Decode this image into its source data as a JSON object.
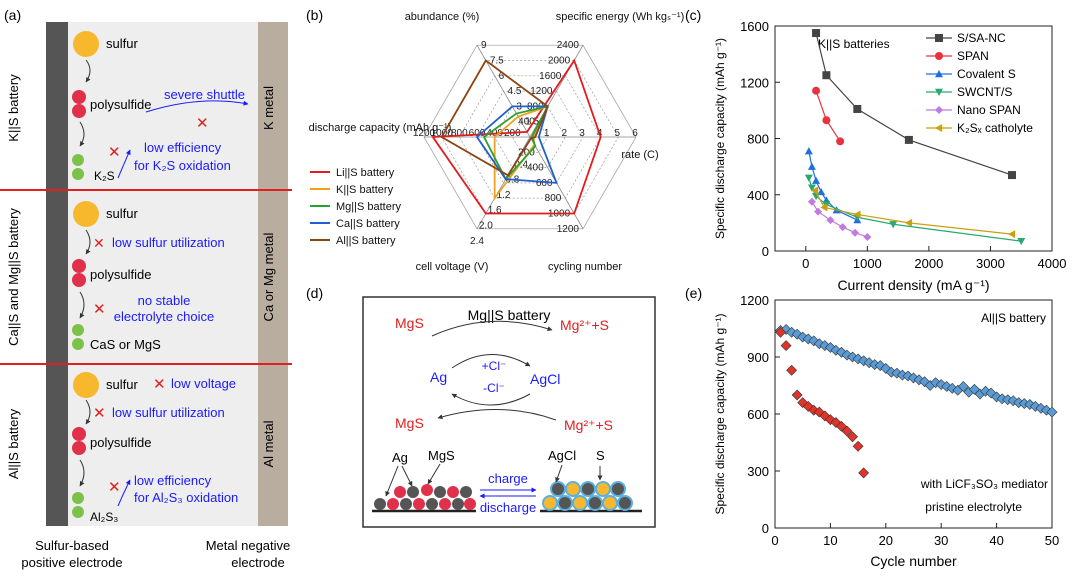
{
  "panel_a": {
    "label": "(a)",
    "rows": [
      {
        "side_label": "K||S battery",
        "metal": "K metal",
        "species": [
          "sulfur",
          "polysulfide",
          "K₂S"
        ],
        "issues": [
          "severe shuttle",
          "low efficiency",
          "for K₂S oxidation"
        ]
      },
      {
        "side_label": "Ca||S and Mg||S battery",
        "metal": "Ca or Mg metal",
        "species": [
          "sulfur",
          "polysulfide",
          "CaS or MgS"
        ],
        "issues": [
          "low sulfur utilization",
          "no stable",
          "electrolyte choice"
        ]
      },
      {
        "side_label": "Al||S battery",
        "metal": "Al metal",
        "species": [
          "sulfur",
          "polysulfide",
          "Al₂S₃"
        ],
        "issues": [
          "low voltage",
          "low sulfur utilization",
          "low efficiency",
          "for Al₂S₃ oxidation"
        ]
      }
    ],
    "footer_left": [
      "Sulfur-based",
      "positive electrode"
    ],
    "footer_right": [
      "Metal negative",
      "electrode"
    ],
    "colors": {
      "sulfur": "#f7b82e",
      "polysulfide": "#e0304a",
      "sulfide": "#7cc24a",
      "anode": "#555555",
      "metal": "#b9ad9f",
      "divider": "#e02020",
      "text": "#1a1aff"
    }
  },
  "panel_b": {
    "label": "(b)",
    "chart_data": {
      "type": "radar",
      "axes": [
        {
          "name": "specific energy (Wh kgₛ⁻¹)",
          "ticks": [
            "400",
            "800",
            "1200",
            "1600",
            "2000",
            "2400"
          ],
          "max": 2400
        },
        {
          "name": "rate (C)",
          "ticks": [
            "1",
            "2",
            "3",
            "4",
            "5",
            "6"
          ],
          "max": 6
        },
        {
          "name": "cycling number",
          "ticks": [
            "200",
            "400",
            "600",
            "800",
            "1000",
            "1200"
          ],
          "max": 1200
        },
        {
          "name": "cell voltage (V)",
          "ticks": [
            "0.4",
            "0.8",
            "1.2",
            "1.6",
            "2.0",
            "2.4"
          ],
          "max": 2.4
        },
        {
          "name": "discharge capacity (mAh g⁻¹)",
          "ticks": [
            "200",
            "400",
            "600",
            "800",
            "1000",
            "1200"
          ],
          "max": 1200
        },
        {
          "name": "abundance (%)",
          "ticks": [
            "1.5",
            "3",
            "4.5",
            "6",
            "7.5",
            "9"
          ],
          "max": 9
        }
      ],
      "series": [
        {
          "name": "Li||S battery",
          "color": "#e41a1c",
          "values": [
            2000,
            4,
            1000,
            2.0,
            1100,
            0.5
          ]
        },
        {
          "name": "K||S battery",
          "color": "#f0a020",
          "values": [
            800,
            0.2,
            100,
            1.6,
            400,
            2.0
          ]
        },
        {
          "name": "Mg||S battery",
          "color": "#2ca02c",
          "values": [
            800,
            0.1,
            120,
            1.1,
            520,
            2.3
          ]
        },
        {
          "name": "Ca||S battery",
          "color": "#1f5fd0",
          "values": [
            800,
            0.5,
            600,
            1.1,
            600,
            3.0
          ]
        },
        {
          "name": "Al||S battery",
          "color": "#8b4513",
          "values": [
            800,
            0.3,
            20,
            1.0,
            1000,
            7.5
          ]
        }
      ]
    }
  },
  "panel_c": {
    "label": "(c)",
    "annotation": "K||S batteries",
    "chart_data": {
      "type": "line",
      "xlabel": "Current density (mA g⁻¹)",
      "ylabel": "Specific discharge capacity (mAh g⁻¹)",
      "xlim": [
        -500,
        4000
      ],
      "ylim": [
        0,
        1600
      ],
      "xticks": [
        "0",
        "1000",
        "2000",
        "3000",
        "4000"
      ],
      "yticks": [
        "0",
        "400",
        "800",
        "1200",
        "1600"
      ],
      "series": [
        {
          "name": "S/SA-NC",
          "color": "#444444",
          "marker": "square",
          "x": [
            167,
            335,
            837,
            1675,
            3350
          ],
          "y": [
            1550,
            1250,
            1010,
            790,
            540
          ]
        },
        {
          "name": "SPAN",
          "color": "#e8333f",
          "marker": "circle",
          "x": [
            167,
            335,
            558
          ],
          "y": [
            1140,
            930,
            780
          ]
        },
        {
          "name": "Covalent S",
          "color": "#1f6fe0",
          "marker": "triangle",
          "x": [
            50,
            100,
            167,
            250,
            335,
            500,
            837
          ],
          "y": [
            710,
            600,
            500,
            420,
            360,
            290,
            220
          ]
        },
        {
          "name": "SWCNT/S",
          "color": "#2aa870",
          "marker": "triangle-down",
          "x": [
            50,
            100,
            167,
            335,
            837,
            1420,
            3500
          ],
          "y": [
            520,
            450,
            390,
            330,
            240,
            190,
            70
          ]
        },
        {
          "name": "Nano SPAN",
          "color": "#c07ae0",
          "marker": "diamond",
          "x": [
            100,
            200,
            400,
            600,
            800,
            1000
          ],
          "y": [
            350,
            280,
            220,
            170,
            130,
            100
          ]
        },
        {
          "name": "K₂Sₓ catholyte",
          "color": "#c8a010",
          "marker": "triangle-left",
          "x": [
            150,
            300,
            837,
            1675,
            3350
          ],
          "y": [
            430,
            310,
            260,
            200,
            120
          ]
        }
      ]
    }
  },
  "panel_d": {
    "label": "(d)",
    "title": "Mg||S battery",
    "top_left": "MgS",
    "top_right": "Mg²⁺+S",
    "mid_left": "Ag",
    "mid_right": "AgCl",
    "plus_cl": "+Cl⁻",
    "minus_cl": "-Cl⁻",
    "bottom_left": "MgS",
    "bottom_right": "Mg²⁺+S",
    "particles_left": [
      "Ag",
      "MgS"
    ],
    "particles_right": [
      "AgCl",
      "S"
    ],
    "charge": "charge",
    "discharge": "discharge"
  },
  "panel_e": {
    "label": "(e)",
    "annotation": "Al||S battery",
    "legend": [
      "with LiCF₃SO₃ mediator",
      "pristine electrolyte"
    ],
    "chart_data": {
      "type": "scatter",
      "xlabel": "Cycle number",
      "ylabel": "Specific discharge capacity (mAh g⁻¹)",
      "xlim": [
        0,
        50
      ],
      "ylim": [
        0,
        1200
      ],
      "xticks": [
        "0",
        "10",
        "20",
        "30",
        "40",
        "50"
      ],
      "yticks": [
        "0",
        "300",
        "600",
        "900",
        "1200"
      ],
      "series": [
        {
          "name": "with LiCF₃SO₃ mediator",
          "color": "#5b9bd5",
          "x": [
            1,
            2,
            3,
            4,
            5,
            6,
            7,
            8,
            9,
            10,
            11,
            12,
            13,
            14,
            15,
            16,
            17,
            18,
            19,
            20,
            21,
            22,
            23,
            24,
            25,
            26,
            27,
            28,
            29,
            30,
            31,
            32,
            33,
            34,
            35,
            36,
            37,
            38,
            39,
            40,
            41,
            42,
            43,
            44,
            45,
            46,
            47,
            48,
            49,
            50
          ],
          "y": [
            1040,
            1045,
            1030,
            1020,
            1005,
            995,
            985,
            970,
            960,
            950,
            935,
            925,
            910,
            900,
            890,
            880,
            870,
            860,
            855,
            840,
            820,
            815,
            805,
            800,
            790,
            780,
            770,
            750,
            765,
            755,
            745,
            735,
            725,
            745,
            715,
            730,
            705,
            720,
            710,
            690,
            680,
            675,
            670,
            660,
            655,
            650,
            640,
            630,
            620,
            610
          ]
        },
        {
          "name": "pristine electrolyte",
          "color": "#e0342a",
          "x": [
            1,
            2,
            3,
            4,
            5,
            6,
            7,
            8,
            9,
            10,
            11,
            12,
            13,
            14,
            15,
            16
          ],
          "y": [
            1030,
            960,
            830,
            700,
            660,
            640,
            620,
            610,
            590,
            570,
            555,
            535,
            510,
            480,
            430,
            290
          ]
        }
      ]
    }
  }
}
